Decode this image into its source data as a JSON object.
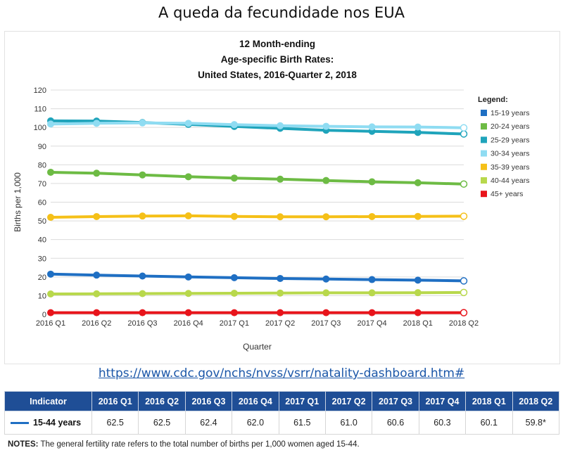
{
  "page_title": "A queda da fecundidade nos EUA",
  "source_url": "https://www.cdc.gov/nchs/nvss/vsrr/natality-dashboard.htm#",
  "chart_data": {
    "type": "line",
    "title_lines": [
      "12 Month-ending",
      "Age-specific Birth Rates:",
      "United States, 2016-Quarter 2, 2018"
    ],
    "xlabel": "Quarter",
    "ylabel": "Births per 1,000",
    "ylim": [
      0,
      120
    ],
    "yticks": [
      0,
      10,
      20,
      30,
      40,
      50,
      60,
      70,
      80,
      90,
      100,
      110,
      120
    ],
    "grid": true,
    "legend_title": "Legend:",
    "legend_position": "right",
    "categories": [
      "2016 Q1",
      "2016 Q2",
      "2016 Q3",
      "2016 Q4",
      "2017 Q1",
      "2017 Q2",
      "2017 Q3",
      "2017 Q4",
      "2018 Q1",
      "2018 Q2"
    ],
    "series": [
      {
        "name": "15-19 years",
        "color": "#1f6fc3",
        "values": [
          21.5,
          21.0,
          20.5,
          20.0,
          19.6,
          19.2,
          18.9,
          18.6,
          18.3,
          17.9
        ]
      },
      {
        "name": "20-24 years",
        "color": "#6dbb44",
        "values": [
          76.0,
          75.5,
          74.6,
          73.6,
          72.9,
          72.3,
          71.6,
          70.9,
          70.4,
          69.7
        ]
      },
      {
        "name": "25-29 years",
        "color": "#1fa4bb",
        "values": [
          103.5,
          103.4,
          102.6,
          101.6,
          100.5,
          99.5,
          98.5,
          97.9,
          97.3,
          96.5
        ]
      },
      {
        "name": "30-34 years",
        "color": "#8fdcf2",
        "values": [
          101.8,
          102.2,
          102.4,
          102.2,
          101.5,
          100.9,
          100.6,
          100.3,
          100.2,
          99.8
        ]
      },
      {
        "name": "35-39 years",
        "color": "#f5c018",
        "values": [
          51.9,
          52.3,
          52.6,
          52.7,
          52.4,
          52.2,
          52.2,
          52.3,
          52.4,
          52.5
        ]
      },
      {
        "name": "40-44 years",
        "color": "#b8d84c",
        "values": [
          10.9,
          11.0,
          11.1,
          11.2,
          11.3,
          11.4,
          11.5,
          11.5,
          11.6,
          11.7
        ]
      },
      {
        "name": "45+ years",
        "color": "#e8141b",
        "values": [
          0.9,
          0.9,
          0.9,
          0.9,
          0.9,
          0.9,
          0.9,
          0.9,
          0.9,
          0.9
        ]
      }
    ]
  },
  "table": {
    "header": [
      "Indicator",
      "2016 Q1",
      "2016 Q2",
      "2016 Q3",
      "2016 Q4",
      "2017 Q1",
      "2017 Q2",
      "2017 Q3",
      "2017 Q4",
      "2018 Q1",
      "2018 Q2"
    ],
    "row_label": "15-44 years",
    "row_color": "#1f6fc3",
    "row_values": [
      "62.5",
      "62.5",
      "62.4",
      "62.0",
      "61.5",
      "61.0",
      "60.6",
      "60.3",
      "60.1",
      "59.8*"
    ]
  },
  "notes": {
    "label": "NOTES:",
    "text": " The general fertility rate refers to the total number of births per 1,000 women aged 15-44."
  }
}
